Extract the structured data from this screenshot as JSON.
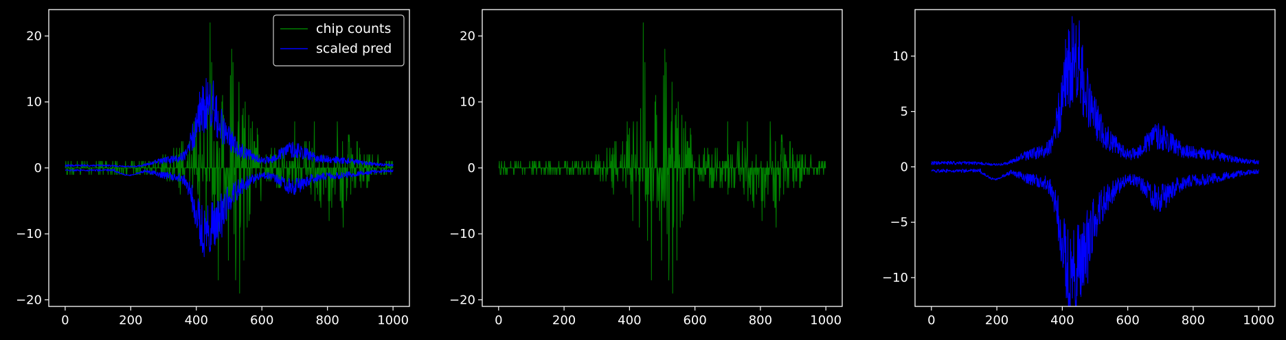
{
  "figure": {
    "background": "#000000",
    "axis_color": "#ffffff",
    "text_color": "#ffffff"
  },
  "chart_data": [
    {
      "type": "line",
      "xlim": [
        -50,
        1050
      ],
      "ylim": [
        -21,
        24
      ],
      "xticks": [
        0,
        200,
        400,
        600,
        800,
        1000
      ],
      "yticks": [
        -20,
        -10,
        0,
        10,
        20
      ],
      "legend_position": "top-right",
      "grid": false,
      "series": [
        {
          "name": "chip counts",
          "color": "#008000",
          "signal": "counts"
        },
        {
          "name": "scaled pred",
          "color": "#0000ff",
          "signal": "pred"
        }
      ],
      "x_range": [
        0,
        1000
      ]
    },
    {
      "type": "line",
      "xlim": [
        -50,
        1050
      ],
      "ylim": [
        -21,
        24
      ],
      "xticks": [
        0,
        200,
        400,
        600,
        800,
        1000
      ],
      "yticks": [
        -20,
        -10,
        0,
        10,
        20
      ],
      "grid": false,
      "series": [
        {
          "color": "#008000",
          "signal": "counts"
        }
      ],
      "x_range": [
        0,
        1000
      ]
    },
    {
      "type": "line",
      "xlim": [
        -50,
        1050
      ],
      "ylim": [
        -12.6,
        14.2
      ],
      "xticks": [
        0,
        200,
        400,
        600,
        800,
        1000
      ],
      "yticks": [
        -10,
        -5,
        0,
        5,
        10
      ],
      "grid": false,
      "series": [
        {
          "color": "#0000ff",
          "signal": "pred"
        }
      ],
      "x_range": [
        0,
        1000
      ]
    }
  ]
}
